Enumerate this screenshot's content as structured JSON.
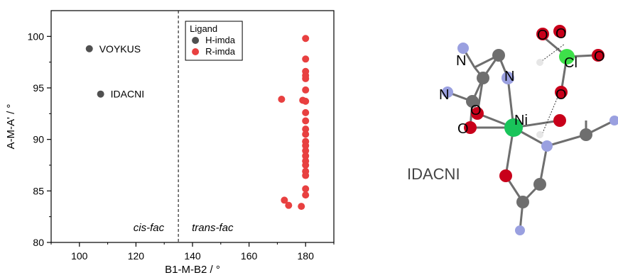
{
  "chart_data": {
    "type": "scatter",
    "xlabel": "B1-M-B2 / °",
    "ylabel": "A-M-A' / °",
    "xlim": [
      90,
      190
    ],
    "ylim": [
      80,
      102.5
    ],
    "xticks": [
      100,
      120,
      140,
      160,
      180
    ],
    "yticks": [
      80,
      85,
      90,
      95,
      100
    ],
    "grid": false,
    "legend": {
      "title": "Ligand",
      "placement": "top-left of right region"
    },
    "divider_x": 135,
    "regions": [
      {
        "label": "cis-fac"
      },
      {
        "label": "trans-fac"
      }
    ],
    "series": [
      {
        "name": "H-imda",
        "color": "#505050",
        "points": [
          {
            "x": 103.5,
            "y": 98.8,
            "label": "VOYKUS"
          },
          {
            "x": 107.5,
            "y": 94.4,
            "label": "IDACNI"
          }
        ]
      },
      {
        "name": "R-imda",
        "color": "#e84040",
        "points": [
          {
            "x": 180,
            "y": 99.8
          },
          {
            "x": 180,
            "y": 97.8
          },
          {
            "x": 180,
            "y": 96.6
          },
          {
            "x": 180,
            "y": 96.2
          },
          {
            "x": 180,
            "y": 95.9
          },
          {
            "x": 180,
            "y": 94.8
          },
          {
            "x": 180,
            "y": 93.7
          },
          {
            "x": 179,
            "y": 93.8
          },
          {
            "x": 171.5,
            "y": 93.9
          },
          {
            "x": 180,
            "y": 92.6
          },
          {
            "x": 180,
            "y": 91.8
          },
          {
            "x": 180,
            "y": 91.0
          },
          {
            "x": 180,
            "y": 90.5
          },
          {
            "x": 180,
            "y": 89.8
          },
          {
            "x": 180,
            "y": 89.4
          },
          {
            "x": 180,
            "y": 88.9
          },
          {
            "x": 180,
            "y": 88.4
          },
          {
            "x": 180,
            "y": 87.9
          },
          {
            "x": 180,
            "y": 87.5
          },
          {
            "x": 180,
            "y": 86.9
          },
          {
            "x": 180,
            "y": 86.5
          },
          {
            "x": 180,
            "y": 85.2
          },
          {
            "x": 180,
            "y": 84.6
          },
          {
            "x": 172.5,
            "y": 84.1
          },
          {
            "x": 174,
            "y": 83.6
          },
          {
            "x": 178.5,
            "y": 83.5
          }
        ]
      }
    ]
  },
  "molecule": {
    "title": "IDACNI",
    "atoms": [
      "O",
      "O",
      "Cl",
      "O",
      "N",
      "N",
      "N",
      "O",
      "O",
      "Ni",
      "O"
    ],
    "colors": {
      "carbon": "#6e6e6e",
      "oxygen": "#c8001a",
      "nitrogen": "#9aa0e0",
      "nickel": "#19c45a",
      "chlorine": "#3ee04a",
      "hydrogen": "#e6e6e6"
    }
  }
}
